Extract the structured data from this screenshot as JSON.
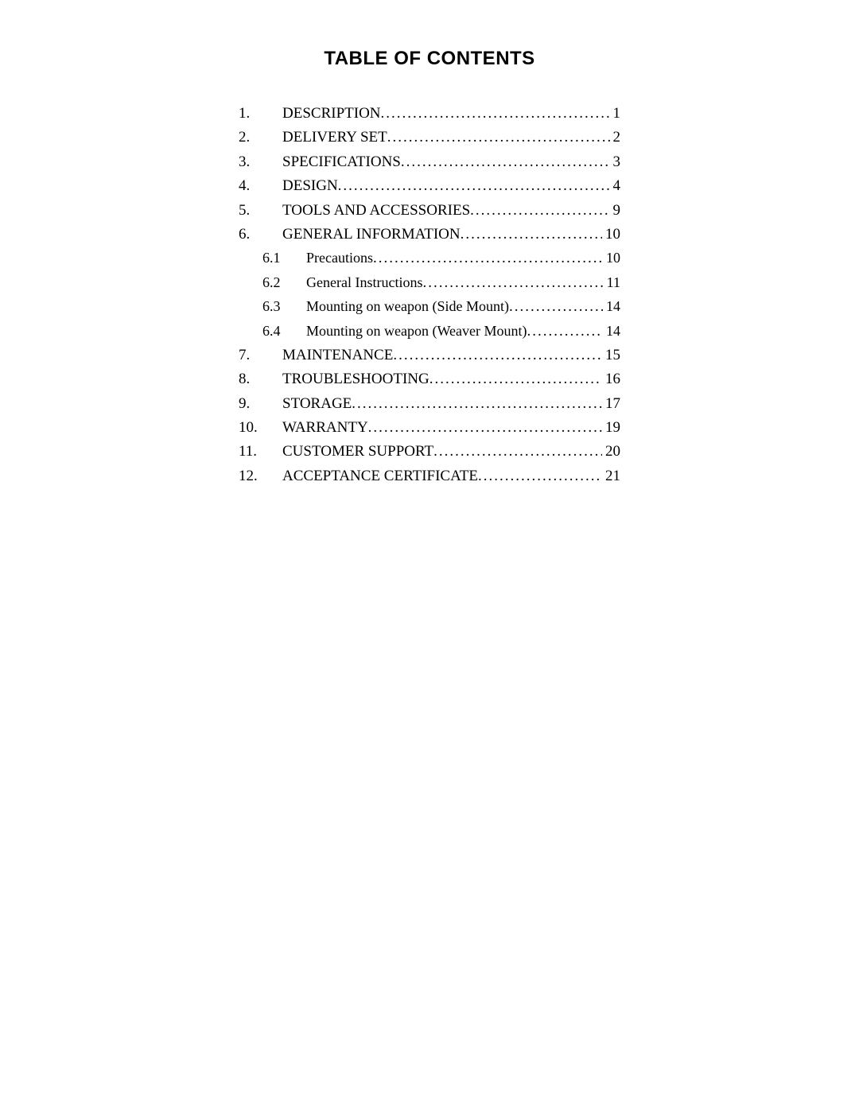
{
  "title": "TABLE OF CONTENTS",
  "entries": [
    {
      "num": "1.",
      "label": "DESCRIPTION",
      "page": "1",
      "sub": false
    },
    {
      "num": "2.",
      "label": "DELIVERY SET",
      "page": "2",
      "sub": false
    },
    {
      "num": "3.",
      "label": "SPECIFICATIONS",
      "page": "3",
      "sub": false
    },
    {
      "num": "4.",
      "label": "DESIGN",
      "page": "4",
      "sub": false
    },
    {
      "num": "5.",
      "label": "TOOLS AND ACCESSORIES",
      "page": "9",
      "sub": false
    },
    {
      "num": "6.",
      "label": "GENERAL INFORMATION",
      "page": "10",
      "sub": false
    },
    {
      "num": "6.1",
      "label": "Precautions",
      "page": "10",
      "sub": true
    },
    {
      "num": "6.2",
      "label": "General Instructions",
      "page": "11",
      "sub": true
    },
    {
      "num": "6.3",
      "label": "Mounting on weapon (Side Mount)",
      "page": "14",
      "sub": true
    },
    {
      "num": "6.4",
      "label": "Mounting on weapon (Weaver Mount)",
      "page": "14",
      "sub": true
    },
    {
      "num": "7.",
      "label": "MAINTENANCE",
      "page": "15",
      "sub": false
    },
    {
      "num": "8.",
      "label": "TROUBLESHOOTING",
      "page": "16",
      "sub": false
    },
    {
      "num": "9.",
      "label": "STORAGE",
      "page": "17",
      "sub": false
    },
    {
      "num": "10.",
      "label": "WARRANTY",
      "page": "19",
      "sub": false
    },
    {
      "num": "11.",
      "label": "CUSTOMER SUPPORT",
      "page": "20",
      "sub": false
    },
    {
      "num": "12.",
      "label": "ACCEPTANCE CERTIFICATE",
      "page": "21",
      "sub": false
    }
  ],
  "colors": {
    "text": "#000000",
    "background": "#ffffff"
  },
  "fonts": {
    "title_family": "Arial",
    "title_size_pt": 18,
    "body_family": "Times New Roman",
    "body_size_pt": 14
  }
}
